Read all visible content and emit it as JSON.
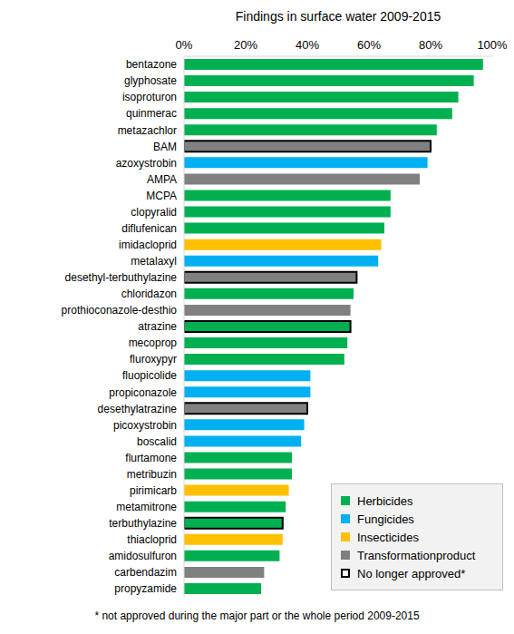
{
  "chart_data": {
    "type": "bar",
    "orientation": "horizontal",
    "title": "Findings in surface water 2009-2015",
    "note": "* not approved during the major part or the whole period 2009-2015",
    "categories": [
      "bentazone",
      "glyphosate",
      "isoproturon",
      "quinmerac",
      "metazachlor",
      "BAM",
      "azoxystrobin",
      "AMPA",
      "MCPA",
      "clopyralid",
      "diflufenican",
      "imidacloprid",
      "metalaxyl",
      "desethyl-terbuthylazine",
      "chloridazon",
      "prothioconazole-desthio",
      "atrazine",
      "mecoprop",
      "fluroxypyr",
      "fluopicolide",
      "propiconazole",
      "desethylatrazine",
      "picoxystrobin",
      "boscalid",
      "flurtamone",
      "metribuzin",
      "pirimicarb",
      "metamitrone",
      "terbuthylazine",
      "thiacloprid",
      "amidosulfuron",
      "carbendazim",
      "propyzamide"
    ],
    "values": [
      97,
      94,
      89,
      87,
      82,
      80,
      79,
      76.5,
      67,
      67,
      65,
      64,
      63,
      56,
      55,
      54,
      54,
      53,
      52,
      41,
      41,
      40,
      39,
      38,
      35,
      35,
      34,
      33,
      32,
      32,
      31,
      26,
      25
    ],
    "colors": [
      "#00b050",
      "#00b050",
      "#00b050",
      "#00b050",
      "#00b050",
      "#808080",
      "#00b0f0",
      "#808080",
      "#00b050",
      "#00b050",
      "#00b050",
      "#ffc000",
      "#00b0f0",
      "#808080",
      "#00b050",
      "#808080",
      "#00b050",
      "#00b050",
      "#00b050",
      "#00b0f0",
      "#00b0f0",
      "#808080",
      "#00b0f0",
      "#00b0f0",
      "#00b050",
      "#00b050",
      "#ffc000",
      "#00b050",
      "#00b050",
      "#ffc000",
      "#00b050",
      "#808080",
      "#00b050"
    ],
    "no_longer_approved": [
      "BAM",
      "desethyl-terbuthylazine",
      "atrazine",
      "desethylatrazine",
      "terbuthylazine"
    ],
    "legend_items": [
      {
        "name": "Herbicides",
        "color": "#00b050"
      },
      {
        "name": "Fungicides",
        "color": "#00b0f0"
      },
      {
        "name": "Insecticides",
        "color": "#ffc000"
      },
      {
        "name": "Transformationproduct",
        "color": "#808080"
      },
      {
        "name": "No longer approved*",
        "color": "#000000"
      }
    ],
    "xlim": [
      0,
      100
    ],
    "xticks": [
      {
        "value": 0,
        "label": "0%"
      },
      {
        "value": 20,
        "label": "20%"
      },
      {
        "value": 40,
        "label": "40%"
      },
      {
        "value": 60,
        "label": "60%"
      },
      {
        "value": 80,
        "label": "80%"
      },
      {
        "value": 100,
        "label": "100%"
      }
    ],
    "grid": false,
    "legend": "lower right"
  }
}
